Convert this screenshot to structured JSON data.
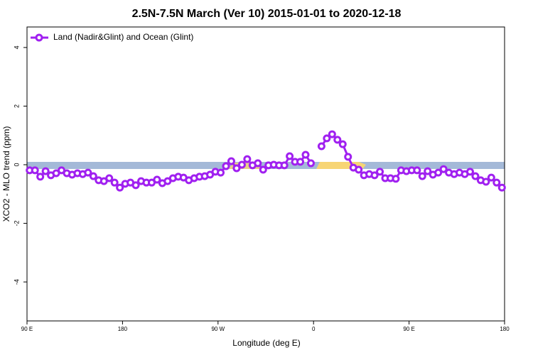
{
  "chart_data": {
    "type": "line",
    "title": "2.5N-7.5N March (Ver 10)   2015-01-01 to 2020-12-18",
    "x_label": "Longitude (deg E)",
    "y_label": "XCO2 - MLO trend (ppm)",
    "x": [
      92.5,
      97.5,
      102.5,
      107.5,
      112.5,
      117.5,
      122.5,
      127.5,
      132.5,
      137.5,
      142.5,
      147.5,
      152.5,
      157.5,
      162.5,
      167.5,
      172.5,
      177.5,
      182.5,
      187.5,
      192.5,
      197.5,
      202.5,
      207.5,
      212.5,
      217.5,
      222.5,
      227.5,
      232.5,
      237.5,
      242.5,
      247.5,
      252.5,
      257.5,
      262.5,
      267.5,
      272.5,
      277.5,
      282.5,
      287.5,
      292.5,
      297.5,
      302.5,
      307.5,
      312.5,
      317.5,
      322.5,
      327.5,
      332.5,
      337.5,
      342.5,
      347.5,
      352.5,
      357.5,
      362.5,
      367.5,
      372.5,
      377.5,
      382.5,
      387.5,
      392.5,
      397.5,
      402.5,
      407.5,
      412.5,
      417.5,
      422.5,
      427.5,
      432.5,
      437.5,
      442.5,
      447.5,
      452.5,
      457.5,
      462.5,
      467.5,
      472.5,
      477.5,
      482.5,
      487.5,
      492.5,
      497.5,
      502.5,
      507.5,
      512.5,
      517.5,
      522.5,
      527.5,
      532.5,
      537.5
    ],
    "series": [
      {
        "name": "Land (Nadir&Glint) and Ocean (Glint)",
        "color": "#a020f0",
        "values": [
          -0.19,
          -0.19,
          -0.41,
          -0.22,
          -0.36,
          -0.29,
          -0.19,
          -0.29,
          -0.34,
          -0.29,
          -0.32,
          -0.27,
          -0.39,
          -0.53,
          -0.56,
          -0.46,
          -0.61,
          -0.78,
          -0.65,
          -0.61,
          -0.7,
          -0.56,
          -0.61,
          -0.61,
          -0.51,
          -0.63,
          -0.56,
          -0.46,
          -0.41,
          -0.44,
          -0.53,
          -0.46,
          -0.41,
          -0.39,
          -0.34,
          -0.24,
          -0.27,
          -0.05,
          0.12,
          -0.12,
          0,
          0.19,
          -0.02,
          0.05,
          -0.17,
          -0.02,
          0,
          -0.02,
          -0.02,
          0.29,
          0.1,
          0.1,
          0.34,
          0.05,
          null,
          0.63,
          0.9,
          1.04,
          0.85,
          0.7,
          0.27,
          -0.1,
          -0.17,
          -0.36,
          -0.32,
          -0.36,
          -0.24,
          -0.46,
          -0.46,
          -0.48,
          -0.19,
          -0.22,
          -0.19,
          -0.19,
          -0.39,
          -0.22,
          -0.34,
          -0.27,
          -0.15,
          -0.27,
          -0.32,
          -0.27,
          -0.32,
          -0.24,
          -0.39,
          -0.53,
          -0.58,
          -0.44,
          -0.61,
          -0.78
        ]
      }
    ],
    "xlim": [
      90,
      540
    ],
    "xticks": [
      {
        "value": 90,
        "label": "90 E"
      },
      180,
      {
        "value": 270,
        "label": "90 W"
      },
      {
        "value": 360,
        "label": "0"
      },
      {
        "value": 450,
        "label": "90 E"
      },
      {
        "value": 540,
        "label": "180"
      }
    ],
    "ylim": [
      -5.33,
      4.7
    ],
    "yticks": [
      -4,
      -2,
      0,
      2,
      4
    ],
    "legend": "top-left"
  }
}
